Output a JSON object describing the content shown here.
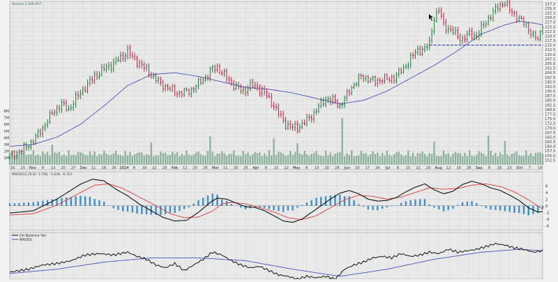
{
  "colors": {
    "background": "#f2f2f2",
    "panel": "#e9e9e9",
    "grid": "#cfcfcf",
    "up": "#1d7a3a",
    "down": "#c0224a",
    "sma": "#4b4fc2",
    "volume": "#7fa892",
    "volume_highlight": "#9aa",
    "macd_line": "#111111",
    "signal_line": "#e03b3b",
    "histogram": "#3d8fc6",
    "obv_line": "#111111",
    "obv_ma": "#4b4fc2",
    "support": "#1b1bb0"
  },
  "chart_data": [
    {
      "type": "ohlc",
      "volume_label": "Volume 2,369,457",
      "x_ticks": [
        "16",
        "23",
        "Nov",
        "6",
        "13",
        "20",
        "27",
        "Dec",
        "11",
        "18",
        "26",
        "2024",
        "8",
        "16",
        "22",
        "29",
        "Feb",
        "12",
        "20",
        "26",
        "Mar",
        "11",
        "18",
        "25",
        "Apr",
        "8",
        "15",
        "22",
        "May",
        "6",
        "13",
        "20",
        "28",
        "Jun",
        "10",
        "17",
        "24",
        "Jul",
        "8",
        "15",
        "22",
        "29",
        "Aug",
        "12",
        "19",
        "26",
        "Sep",
        "9",
        "16",
        "23",
        "Oct",
        "7",
        "14"
      ],
      "y_ticks": [
        "237.5",
        "235.0",
        "232.5",
        "230.0",
        "227.5",
        "225.0",
        "222.5",
        "220.0",
        "217.5",
        "215.0",
        "212.5",
        "210.0",
        "207.5",
        "205.0",
        "202.5",
        "200.0",
        "197.5",
        "195.0",
        "192.5",
        "190.0",
        "187.5",
        "185.0",
        "182.5",
        "180.0",
        "177.5",
        "175.0",
        "172.5",
        "170.0",
        "167.5",
        "165.0",
        "162.5",
        "160.0",
        "157.5",
        "155.0",
        "152.5"
      ],
      "volume_ticks": [
        "8M",
        "7M",
        "6M",
        "5M",
        "4M",
        "3M",
        "2M",
        "1M"
      ],
      "price_path": [
        [
          0,
          155
        ],
        [
          5,
          158
        ],
        [
          10,
          163
        ],
        [
          14,
          170
        ],
        [
          18,
          178
        ],
        [
          22,
          183
        ],
        [
          25,
          180
        ],
        [
          28,
          186
        ],
        [
          32,
          192
        ],
        [
          36,
          198
        ],
        [
          40,
          202
        ],
        [
          44,
          205
        ],
        [
          48,
          209
        ],
        [
          50,
          212
        ],
        [
          52,
          208
        ],
        [
          56,
          204
        ],
        [
          60,
          199
        ],
        [
          64,
          194
        ],
        [
          68,
          191
        ],
        [
          72,
          189
        ],
        [
          76,
          190
        ],
        [
          80,
          194
        ],
        [
          84,
          199
        ],
        [
          86,
          202
        ],
        [
          88,
          203
        ],
        [
          90,
          200
        ],
        [
          93,
          196
        ],
        [
          96,
          192
        ],
        [
          99,
          190
        ],
        [
          102,
          193
        ],
        [
          105,
          192
        ],
        [
          108,
          189
        ],
        [
          111,
          184
        ],
        [
          114,
          178
        ],
        [
          117,
          172
        ],
        [
          120,
          170
        ],
        [
          123,
          171
        ],
        [
          126,
          174
        ],
        [
          129,
          178
        ],
        [
          132,
          183
        ],
        [
          134,
          186
        ],
        [
          137,
          185
        ],
        [
          140,
          182
        ],
        [
          143,
          188
        ],
        [
          146,
          194
        ],
        [
          149,
          198
        ],
        [
          152,
          197
        ],
        [
          155,
          195
        ],
        [
          158,
          197
        ],
        [
          161,
          196
        ],
        [
          164,
          199
        ],
        [
          167,
          202
        ],
        [
          170,
          208
        ],
        [
          173,
          212
        ],
        [
          176,
          213
        ],
        [
          178,
          216
        ],
        [
          180,
          230
        ],
        [
          182,
          234
        ],
        [
          184,
          226
        ],
        [
          186,
          224
        ],
        [
          189,
          221
        ],
        [
          192,
          218
        ],
        [
          195,
          221
        ],
        [
          198,
          220
        ],
        [
          201,
          226
        ],
        [
          204,
          231
        ],
        [
          207,
          236
        ],
        [
          210,
          238
        ],
        [
          212,
          234
        ],
        [
          214,
          232
        ],
        [
          216,
          229
        ],
        [
          219,
          226
        ],
        [
          222,
          220
        ],
        [
          224,
          218
        ],
        [
          225,
          222
        ],
        [
          226,
          227
        ]
      ],
      "sma_path": [
        [
          0,
          160
        ],
        [
          10,
          161
        ],
        [
          20,
          165
        ],
        [
          30,
          172
        ],
        [
          40,
          182
        ],
        [
          50,
          193
        ],
        [
          60,
          199
        ],
        [
          70,
          200
        ],
        [
          80,
          198
        ],
        [
          90,
          195
        ],
        [
          100,
          192
        ],
        [
          110,
          191
        ],
        [
          120,
          189
        ],
        [
          130,
          186
        ],
        [
          140,
          183
        ],
        [
          150,
          185
        ],
        [
          160,
          190
        ],
        [
          170,
          197
        ],
        [
          180,
          204
        ],
        [
          190,
          212
        ],
        [
          200,
          221
        ],
        [
          210,
          226
        ],
        [
          216,
          228
        ],
        [
          222,
          227
        ],
        [
          226,
          226
        ]
      ],
      "support_level": 215.0,
      "volume_spikes": [
        {
          "x": 18,
          "level": 2.6
        },
        {
          "x": 60,
          "level": 2.9
        },
        {
          "x": 85,
          "level": 3.7
        },
        {
          "x": 112,
          "level": 3.4
        },
        {
          "x": 122,
          "level": 2.8
        },
        {
          "x": 141,
          "level": 6.1
        },
        {
          "x": 180,
          "level": 3.0
        },
        {
          "x": 203,
          "level": 3.8
        },
        {
          "x": 210,
          "level": 3.1
        }
      ],
      "ylim": [
        150,
        238
      ]
    },
    {
      "type": "line",
      "label": "MACD(12,26,9) -1.740, -1.039, -0.701",
      "y_ticks": [
        "6",
        "4",
        "2",
        "0",
        "-2",
        "-4",
        "-6"
      ],
      "macd_path": [
        [
          0,
          -2.2
        ],
        [
          10,
          -1.5
        ],
        [
          20,
          2.0
        ],
        [
          30,
          6.5
        ],
        [
          35,
          8.0
        ],
        [
          40,
          7.5
        ],
        [
          45,
          5.0
        ],
        [
          50,
          3.0
        ],
        [
          55,
          0.5
        ],
        [
          60,
          -1.5
        ],
        [
          65,
          -3.5
        ],
        [
          70,
          -4.6
        ],
        [
          75,
          -4.4
        ],
        [
          80,
          -2.0
        ],
        [
          85,
          1.0
        ],
        [
          88,
          2.3
        ],
        [
          92,
          2.0
        ],
        [
          96,
          0.8
        ],
        [
          100,
          -0.3
        ],
        [
          104,
          -0.5
        ],
        [
          108,
          -1.5
        ],
        [
          112,
          -3.0
        ],
        [
          116,
          -4.6
        ],
        [
          120,
          -5.0
        ],
        [
          124,
          -4.0
        ],
        [
          128,
          -2.0
        ],
        [
          132,
          0.0
        ],
        [
          136,
          2.0
        ],
        [
          140,
          3.8
        ],
        [
          144,
          4.6
        ],
        [
          148,
          3.6
        ],
        [
          152,
          2.0
        ],
        [
          156,
          1.4
        ],
        [
          160,
          1.6
        ],
        [
          164,
          2.5
        ],
        [
          168,
          4.2
        ],
        [
          172,
          5.6
        ],
        [
          176,
          6.6
        ],
        [
          180,
          4.8
        ],
        [
          184,
          3.6
        ],
        [
          188,
          4.4
        ],
        [
          192,
          6.4
        ],
        [
          196,
          7.4
        ],
        [
          200,
          6.6
        ],
        [
          204,
          5.4
        ],
        [
          208,
          4.6
        ],
        [
          212,
          3.2
        ],
        [
          216,
          1.6
        ],
        [
          220,
          -0.6
        ],
        [
          224,
          -1.9
        ],
        [
          226,
          -1.74
        ]
      ],
      "signal_path": [
        [
          0,
          -2.8
        ],
        [
          10,
          -2.4
        ],
        [
          20,
          0.2
        ],
        [
          30,
          4.0
        ],
        [
          36,
          6.2
        ],
        [
          42,
          6.6
        ],
        [
          48,
          5.2
        ],
        [
          55,
          2.6
        ],
        [
          62,
          0.0
        ],
        [
          68,
          -2.4
        ],
        [
          74,
          -3.6
        ],
        [
          80,
          -3.4
        ],
        [
          86,
          -1.6
        ],
        [
          90,
          0.6
        ],
        [
          94,
          1.0
        ],
        [
          100,
          0.6
        ],
        [
          106,
          -0.5
        ],
        [
          112,
          -1.9
        ],
        [
          118,
          -3.6
        ],
        [
          124,
          -4.2
        ],
        [
          130,
          -3.0
        ],
        [
          136,
          -0.6
        ],
        [
          142,
          1.8
        ],
        [
          148,
          3.2
        ],
        [
          154,
          2.8
        ],
        [
          160,
          2.0
        ],
        [
          166,
          2.6
        ],
        [
          172,
          4.0
        ],
        [
          178,
          5.4
        ],
        [
          184,
          5.0
        ],
        [
          190,
          5.2
        ],
        [
          196,
          6.2
        ],
        [
          202,
          6.6
        ],
        [
          208,
          5.8
        ],
        [
          214,
          4.2
        ],
        [
          220,
          1.8
        ],
        [
          226,
          -1.039
        ]
      ]
    },
    {
      "type": "line",
      "labels": [
        "On Balance Vol",
        "MA(50)"
      ],
      "obv_path": [
        [
          0,
          -5
        ],
        [
          8,
          -3
        ],
        [
          14,
          0
        ],
        [
          20,
          1
        ],
        [
          26,
          3
        ],
        [
          32,
          7
        ],
        [
          38,
          8
        ],
        [
          44,
          7
        ],
        [
          50,
          9
        ],
        [
          54,
          6
        ],
        [
          58,
          4
        ],
        [
          62,
          0
        ],
        [
          66,
          -2
        ],
        [
          70,
          1
        ],
        [
          74,
          -4
        ],
        [
          78,
          0
        ],
        [
          82,
          4
        ],
        [
          86,
          9
        ],
        [
          90,
          7
        ],
        [
          94,
          3
        ],
        [
          98,
          0
        ],
        [
          102,
          -2
        ],
        [
          106,
          -1
        ],
        [
          110,
          -4
        ],
        [
          114,
          -7
        ],
        [
          118,
          -8
        ],
        [
          122,
          -10
        ],
        [
          126,
          -8
        ],
        [
          130,
          -9
        ],
        [
          134,
          -8
        ],
        [
          138,
          -10
        ],
        [
          142,
          -3
        ],
        [
          146,
          0
        ],
        [
          150,
          2
        ],
        [
          154,
          5
        ],
        [
          158,
          6
        ],
        [
          162,
          5
        ],
        [
          166,
          8
        ],
        [
          170,
          6
        ],
        [
          174,
          7
        ],
        [
          178,
          9
        ],
        [
          182,
          8
        ],
        [
          186,
          11
        ],
        [
          190,
          9
        ],
        [
          194,
          10
        ],
        [
          198,
          11
        ],
        [
          202,
          13
        ],
        [
          206,
          15
        ],
        [
          210,
          14
        ],
        [
          214,
          12
        ],
        [
          218,
          11
        ],
        [
          222,
          9
        ],
        [
          226,
          10
        ]
      ],
      "obv_ma_path": [
        [
          0,
          -6
        ],
        [
          20,
          -3
        ],
        [
          40,
          2
        ],
        [
          60,
          5
        ],
        [
          80,
          5
        ],
        [
          100,
          3
        ],
        [
          120,
          -3
        ],
        [
          140,
          -8
        ],
        [
          160,
          -3
        ],
        [
          180,
          4
        ],
        [
          200,
          9
        ],
        [
          216,
          11
        ],
        [
          226,
          10
        ]
      ]
    }
  ]
}
